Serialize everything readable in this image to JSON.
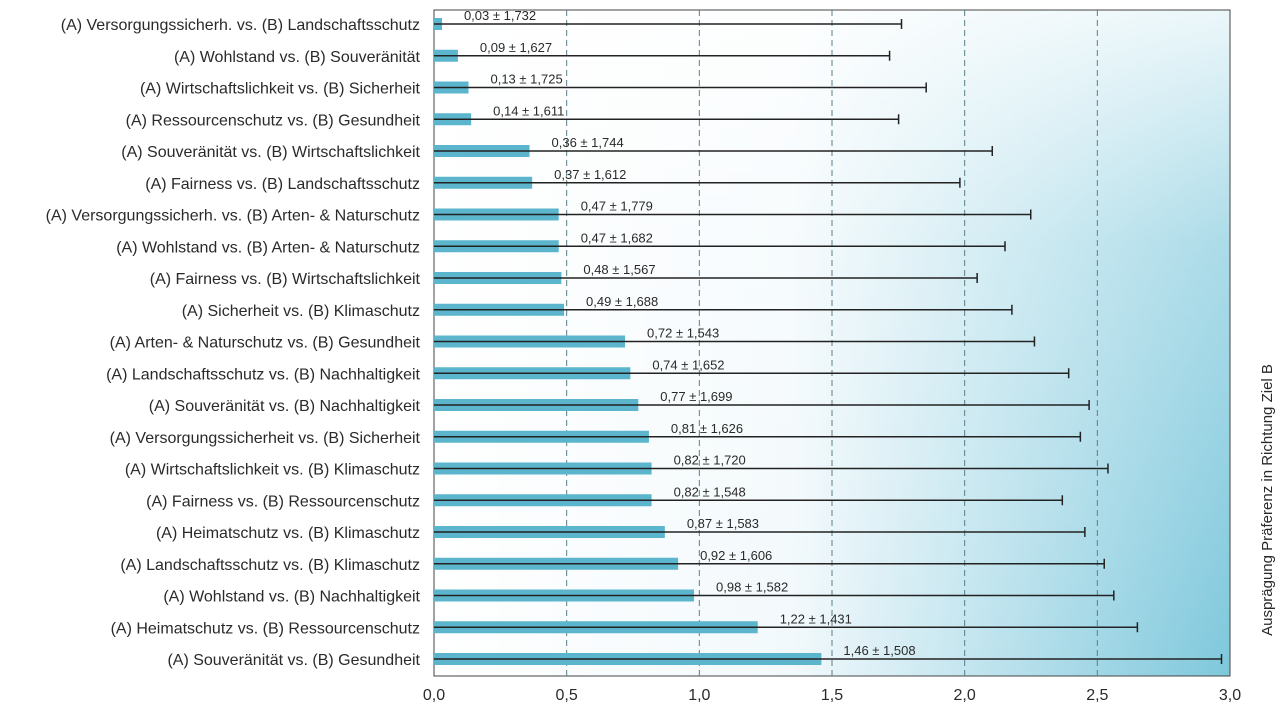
{
  "chart_data": {
    "type": "bar",
    "orientation": "horizontal",
    "ylabel": "Ausprägung Präferenz in Richtung Ziel B",
    "xlim": [
      0,
      3.0
    ],
    "xticks": [
      0.0,
      0.5,
      1.0,
      1.5,
      2.0,
      2.5,
      3.0
    ],
    "xtick_labels": [
      "0,0",
      "0,5",
      "1,0",
      "1,5",
      "2,0",
      "2,5",
      "3,0"
    ],
    "grid": "vertical dashed at 0.5, 1.0, 1.5, 2.0, 2.5",
    "error_bars": "± standard deviation (right side only)",
    "categories": [
      "(A) Versorgungssicherh. vs. (B) Landschaftsschutz",
      "(A) Wohlstand vs. (B) Souveränität",
      "(A) Wirtschaftslichkeit vs. (B) Sicherheit",
      "(A) Ressourcenschutz vs. (B) Gesundheit",
      "(A) Souveränität vs. (B) Wirtschaftslichkeit",
      "(A) Fairness vs. (B) Landschaftsschutz",
      "(A) Versorgungssicherh. vs. (B) Arten- & Naturschutz",
      "(A) Wohlstand vs. (B) Arten- & Naturschutz",
      "(A) Fairness vs. (B) Wirtschaftslichkeit",
      "(A) Sicherheit vs. (B) Klimaschutz",
      "(A) Arten- & Naturschutz vs. (B) Gesundheit",
      "(A) Landschaftsschutz vs. (B) Nachhaltigkeit",
      "(A) Souveränität vs. (B) Nachhaltigkeit",
      "(A) Versorgungssicherheit vs. (B) Sicherheit",
      "(A) Wirtschaftslichkeit vs. (B) Klimaschutz",
      "(A) Fairness vs. (B) Ressourcenschutz",
      "(A) Heimatschutz vs. (B) Klimaschutz",
      "(A) Landschaftsschutz vs. (B) Klimaschutz",
      "(A) Wohlstand vs. (B) Nachhaltigkeit",
      "(A) Heimatschutz vs. (B) Ressourcenschutz",
      "(A) Souveränität vs. (B) Gesundheit"
    ],
    "values": [
      0.03,
      0.09,
      0.13,
      0.14,
      0.36,
      0.37,
      0.47,
      0.47,
      0.48,
      0.49,
      0.72,
      0.74,
      0.77,
      0.81,
      0.82,
      0.82,
      0.87,
      0.92,
      0.98,
      1.22,
      1.46
    ],
    "errors": [
      1.732,
      1.627,
      1.725,
      1.611,
      1.744,
      1.612,
      1.779,
      1.682,
      1.567,
      1.688,
      1.543,
      1.652,
      1.699,
      1.626,
      1.72,
      1.548,
      1.583,
      1.606,
      1.582,
      1.431,
      1.508
    ],
    "value_labels": [
      "0,03 ± 1,732",
      "0,09 ± 1,627",
      "0,13 ± 1,725",
      "0,14 ± 1,611",
      "0,36 ± 1,744",
      "0,37 ± 1,612",
      "0,47 ± 1,779",
      "0,47 ± 1,682",
      "0,48 ± 1,567",
      "0,49 ± 1,688",
      "0,72 ± 1,543",
      "0,74 ± 1,652",
      "0,77 ± 1,699",
      "0,81 ± 1,626",
      "0,82 ± 1,720",
      "0,82 ± 1,548",
      "0,87 ± 1,583",
      "0,92 ± 1,606",
      "0,98 ± 1,582",
      "1,22 ± 1,431",
      "1,46 ± 1,508"
    ],
    "colors": {
      "bar": "#5bb5cc",
      "error_bar": "#222222",
      "grid": "#5a7f88",
      "background_light": "#ffffff",
      "background_dark": "#7ec8dc"
    }
  }
}
